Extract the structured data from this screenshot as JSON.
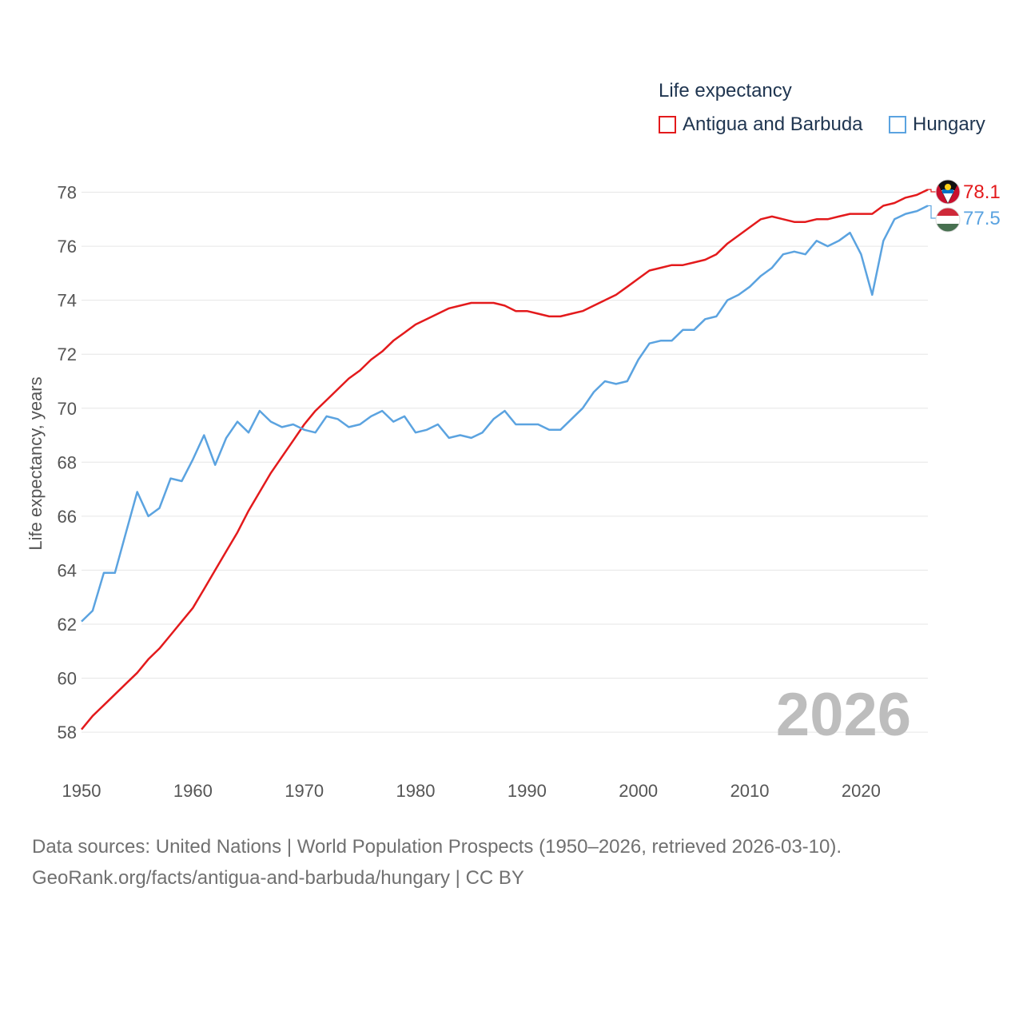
{
  "chart_data": {
    "type": "line",
    "legend_title": "Life expectancy",
    "ylabel": "Life expectancy, years",
    "xlabel": "",
    "xlim": [
      1950,
      2026
    ],
    "ylim": [
      56.7,
      79.2
    ],
    "y_ticks": [
      58,
      60,
      62,
      64,
      66,
      68,
      70,
      72,
      74,
      76,
      78
    ],
    "x_ticks": [
      1950,
      1960,
      1970,
      1980,
      1990,
      2000,
      2010,
      2020
    ],
    "year_label": "2026",
    "x": [
      1950,
      1951,
      1952,
      1953,
      1954,
      1955,
      1956,
      1957,
      1958,
      1959,
      1960,
      1961,
      1962,
      1963,
      1964,
      1965,
      1966,
      1967,
      1968,
      1969,
      1970,
      1971,
      1972,
      1973,
      1974,
      1975,
      1976,
      1977,
      1978,
      1979,
      1980,
      1981,
      1982,
      1983,
      1984,
      1985,
      1986,
      1987,
      1988,
      1989,
      1990,
      1991,
      1992,
      1993,
      1994,
      1995,
      1996,
      1997,
      1998,
      1999,
      2000,
      2001,
      2002,
      2003,
      2004,
      2005,
      2006,
      2007,
      2008,
      2009,
      2010,
      2011,
      2012,
      2013,
      2014,
      2015,
      2016,
      2017,
      2018,
      2019,
      2020,
      2021,
      2022,
      2023,
      2024,
      2025,
      2026
    ],
    "series": [
      {
        "name": "Antigua and Barbuda",
        "color": "#e31a1c",
        "end_label": "78.1",
        "flag_icon": "antigua-and-barbuda-flag-icon",
        "values": [
          58.1,
          58.6,
          59.0,
          59.4,
          59.8,
          60.2,
          60.7,
          61.1,
          61.6,
          62.1,
          62.6,
          63.3,
          64.0,
          64.7,
          65.4,
          66.2,
          66.9,
          67.6,
          68.2,
          68.8,
          69.4,
          69.9,
          70.3,
          70.7,
          71.1,
          71.4,
          71.8,
          72.1,
          72.5,
          72.8,
          73.1,
          73.3,
          73.5,
          73.7,
          73.8,
          73.9,
          73.9,
          73.9,
          73.8,
          73.6,
          73.6,
          73.5,
          73.4,
          73.4,
          73.5,
          73.6,
          73.8,
          74.0,
          74.2,
          74.5,
          74.8,
          75.1,
          75.2,
          75.3,
          75.3,
          75.4,
          75.5,
          75.7,
          76.1,
          76.4,
          76.7,
          77.0,
          77.1,
          77.0,
          76.9,
          76.9,
          77.0,
          77.0,
          77.1,
          77.2,
          77.2,
          77.2,
          77.5,
          77.6,
          77.8,
          77.9,
          78.1
        ]
      },
      {
        "name": "Hungary",
        "color": "#5ba3e0",
        "end_label": "77.5",
        "flag_icon": "hungary-flag-icon",
        "values": [
          62.1,
          62.5,
          63.9,
          63.9,
          65.4,
          66.9,
          66.0,
          66.3,
          67.4,
          67.3,
          68.1,
          69.0,
          67.9,
          68.9,
          69.5,
          69.1,
          69.9,
          69.5,
          69.3,
          69.4,
          69.2,
          69.1,
          69.7,
          69.6,
          69.3,
          69.4,
          69.7,
          69.9,
          69.5,
          69.7,
          69.1,
          69.2,
          69.4,
          68.9,
          69.0,
          68.9,
          69.1,
          69.6,
          69.9,
          69.4,
          69.4,
          69.4,
          69.2,
          69.2,
          69.6,
          70.0,
          70.6,
          71.0,
          70.9,
          71.0,
          71.8,
          72.4,
          72.5,
          72.5,
          72.9,
          72.9,
          73.3,
          73.4,
          74.0,
          74.2,
          74.5,
          74.9,
          75.2,
          75.7,
          75.8,
          75.7,
          76.2,
          76.0,
          76.2,
          76.5,
          75.7,
          74.2,
          76.2,
          77.0,
          77.2,
          77.3,
          77.5
        ]
      }
    ]
  },
  "footer": {
    "line1": "Data sources: United Nations | World Population Prospects (1950–2026, retrieved 2026-03-10).",
    "line2": "GeoRank.org/facts/antigua-and-barbuda/hungary | CC BY"
  }
}
